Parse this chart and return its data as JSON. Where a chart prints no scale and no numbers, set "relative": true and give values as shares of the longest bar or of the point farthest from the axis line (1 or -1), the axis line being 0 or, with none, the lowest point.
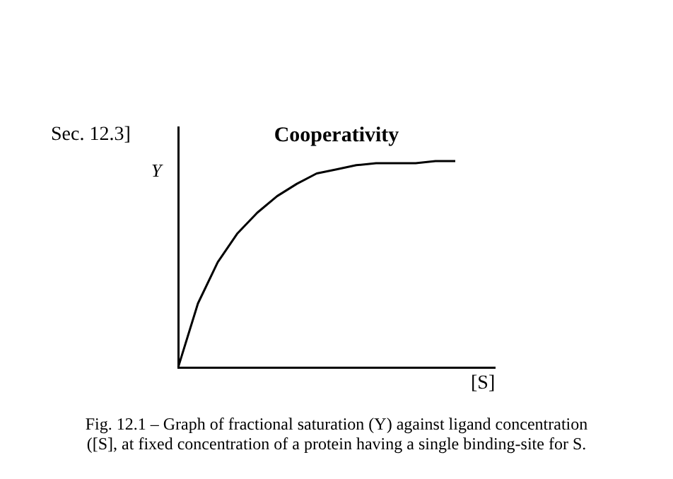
{
  "chart_data": {
    "type": "line",
    "title": "Cooperativity",
    "ylabel": "Y",
    "xlabel": "[S]",
    "relative": true,
    "annotations": [
      "Sec. 12.3]",
      "Fig. 12.1 – Graph of fractional saturation (Y) against ligand concentration ([S], at fixed concentration of a protein having a single binding-site for S."
    ],
    "categories": [
      null,
      null,
      null,
      null,
      null,
      null,
      null,
      null,
      null,
      null,
      null,
      null,
      null,
      null,
      null,
      null,
      null
    ],
    "series": [
      {
        "color": "#000000",
        "values": [
          0,
          0.31,
          0.51,
          0.65,
          0.75,
          0.83,
          0.89,
          0.94,
          0.96,
          0.98,
          0.99,
          0.99,
          0.99,
          1,
          1,
          null,
          null
        ]
      }
    ],
    "grid": false,
    "legend": false
  }
}
